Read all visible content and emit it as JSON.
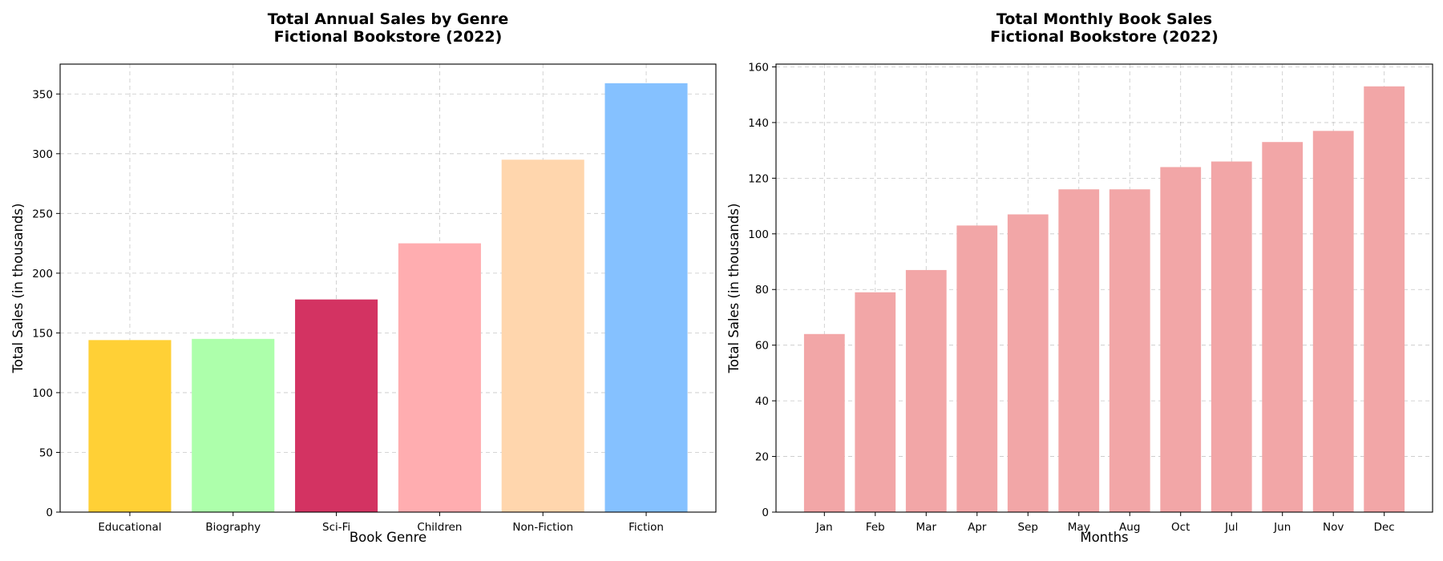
{
  "chart_data": [
    {
      "type": "bar",
      "title_lines": [
        "Total Annual Sales by Genre",
        "Fictional Bookstore (2022)"
      ],
      "xlabel": "Book Genre",
      "ylabel": "Total Sales (in thousands)",
      "categories": [
        "Educational",
        "Biography",
        "Sci-Fi",
        "Children",
        "Non-Fiction",
        "Fiction"
      ],
      "values": [
        144,
        145,
        178,
        225,
        295,
        359
      ],
      "colors": [
        "#FFD036",
        "#ADFFAB",
        "#D33362",
        "#FFADB0",
        "#FFD6AD",
        "#85C1FF"
      ],
      "ylim": [
        0,
        375
      ],
      "yticks": [
        0,
        50,
        100,
        150,
        200,
        250,
        300,
        350
      ],
      "grid": true
    },
    {
      "type": "bar",
      "title_lines": [
        "Total Monthly Book Sales",
        "Fictional Bookstore (2022)"
      ],
      "xlabel": "Months",
      "ylabel": "Total Sales (in thousands)",
      "categories": [
        "Jan",
        "Feb",
        "Mar",
        "Apr",
        "Sep",
        "May",
        "Aug",
        "Oct",
        "Jul",
        "Jun",
        "Nov",
        "Dec"
      ],
      "values": [
        64,
        79,
        87,
        103,
        107,
        116,
        116,
        124,
        126,
        133,
        137,
        153
      ],
      "colors": [
        "#F2A6A7"
      ],
      "ylim": [
        0,
        161
      ],
      "yticks": [
        0,
        20,
        40,
        60,
        80,
        100,
        120,
        140,
        160
      ],
      "grid": true
    }
  ]
}
